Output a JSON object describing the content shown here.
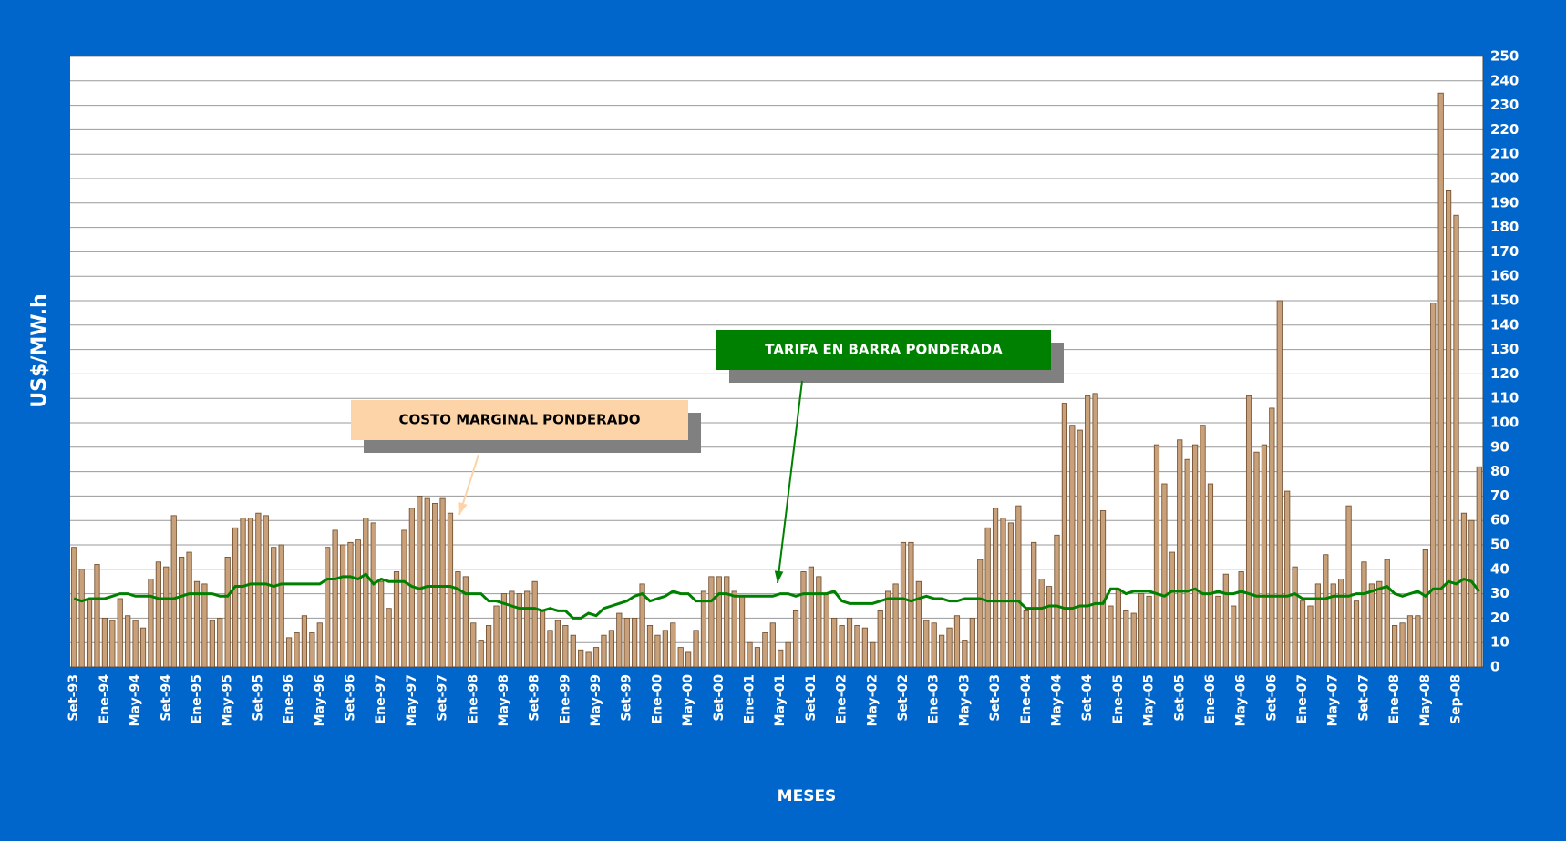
{
  "chart_data": {
    "type": "bar_line",
    "ylabel": "US$/MW.h",
    "xlabel": "MESES",
    "annotations": [
      "COSTO MARGINAL PONDERADO",
      "TARIFA EN BARRA PONDERADA"
    ],
    "ylim": [
      0,
      250
    ],
    "yticks": [
      0,
      10,
      20,
      30,
      40,
      50,
      60,
      70,
      80,
      90,
      100,
      110,
      120,
      130,
      140,
      150,
      160,
      170,
      180,
      190,
      200,
      210,
      220,
      230,
      240,
      250
    ],
    "grid": true,
    "categories": [
      "Set-93",
      null,
      null,
      null,
      "Ene-94",
      null,
      null,
      null,
      "May-94",
      null,
      null,
      null,
      "Set-94",
      null,
      null,
      null,
      "Ene-95",
      null,
      null,
      null,
      "May-95",
      null,
      null,
      null,
      "Set-95",
      null,
      null,
      null,
      "Ene-96",
      null,
      null,
      null,
      "May-96",
      null,
      null,
      null,
      "Set-96",
      null,
      null,
      null,
      "Ene-97",
      null,
      null,
      null,
      "May-97",
      null,
      null,
      null,
      "Set-97",
      null,
      null,
      null,
      "Ene-98",
      null,
      null,
      null,
      "May-98",
      null,
      null,
      null,
      "Set-98",
      null,
      null,
      null,
      "Ene-99",
      null,
      null,
      null,
      "May-99",
      null,
      null,
      null,
      "Set-99",
      null,
      null,
      null,
      "Ene-00",
      null,
      null,
      null,
      "May-00",
      null,
      null,
      null,
      "Set-00",
      null,
      null,
      null,
      "Ene-01",
      null,
      null,
      null,
      "May-01",
      null,
      null,
      null,
      "Set-01",
      null,
      null,
      null,
      "Ene-02",
      null,
      null,
      null,
      "May-02",
      null,
      null,
      null,
      "Set-02",
      null,
      null,
      null,
      "Ene-03",
      null,
      null,
      null,
      "May-03",
      null,
      null,
      null,
      "Set-03",
      null,
      null,
      null,
      "Ene-04",
      null,
      null,
      null,
      "May-04",
      null,
      null,
      null,
      "Set-04",
      null,
      null,
      null,
      "Ene-05",
      null,
      null,
      null,
      "May-05",
      null,
      null,
      null,
      "Set-05",
      null,
      null,
      null,
      "Ene-06",
      null,
      null,
      null,
      "May-06",
      null,
      null,
      null,
      "Set-06",
      null,
      null,
      null,
      "Ene-07",
      null,
      null,
      null,
      "May-07",
      null,
      null,
      null,
      "Set-07",
      null,
      null,
      null,
      "Ene-08",
      null,
      null,
      null,
      "May-08",
      null,
      null,
      null,
      "Sep-08",
      null,
      null,
      null
    ],
    "series": [
      {
        "name": "COSTO MARGINAL PONDERADO",
        "type": "bar",
        "color": "#c8a07a",
        "values": [
          49,
          40,
          28,
          42,
          20,
          19,
          28,
          21,
          19,
          16,
          36,
          43,
          41,
          62,
          45,
          47,
          35,
          34,
          19,
          20,
          45,
          57,
          61,
          61,
          63,
          62,
          49,
          50,
          12,
          14,
          21,
          14,
          18,
          49,
          56,
          50,
          51,
          52,
          61,
          59,
          35,
          24,
          39,
          56,
          65,
          70,
          69,
          67,
          69,
          63,
          39,
          37,
          18,
          11,
          17,
          25,
          30,
          31,
          30,
          31,
          35,
          23,
          15,
          19,
          17,
          13,
          7,
          6,
          8,
          13,
          15,
          22,
          20,
          20,
          34,
          17,
          13,
          15,
          18,
          8,
          6,
          15,
          31,
          37,
          37,
          37,
          31,
          29,
          10,
          8,
          14,
          18,
          7,
          10,
          23,
          39,
          41,
          37,
          30,
          20,
          17,
          20,
          17,
          16,
          10,
          23,
          31,
          34,
          51,
          51,
          35,
          19,
          18,
          13,
          16,
          21,
          11,
          20,
          44,
          57,
          65,
          61,
          59,
          66,
          23,
          51,
          36,
          33,
          54,
          108,
          99,
          97,
          111,
          112,
          64,
          25,
          32,
          23,
          22,
          30,
          29,
          91,
          75,
          47,
          93,
          85,
          91,
          99,
          75,
          29,
          38,
          25,
          39,
          111,
          88,
          91,
          106,
          150,
          72,
          41,
          27,
          25,
          34,
          46,
          34,
          36,
          66,
          27,
          43,
          34,
          35,
          44,
          17,
          18,
          21,
          21,
          48,
          149,
          235,
          195,
          185,
          63,
          60,
          82
        ]
      },
      {
        "name": "TARIFA EN BARRA PONDERADA",
        "type": "line",
        "color": "#008000",
        "values": [
          28,
          27,
          28,
          28,
          28,
          29,
          30,
          30,
          29,
          29,
          29,
          28,
          28,
          28,
          29,
          30,
          30,
          30,
          30,
          29,
          29,
          33,
          33,
          34,
          34,
          34,
          33,
          34,
          34,
          34,
          34,
          34,
          34,
          36,
          36,
          37,
          37,
          36,
          38,
          34,
          36,
          35,
          35,
          35,
          33,
          32,
          33,
          33,
          33,
          33,
          32,
          30,
          30,
          30,
          27,
          27,
          26,
          25,
          24,
          24,
          24,
          23,
          24,
          23,
          23,
          20,
          20,
          22,
          21,
          24,
          25,
          26,
          27,
          29,
          30,
          27,
          28,
          29,
          31,
          30,
          30,
          27,
          27,
          27,
          30,
          30,
          29,
          29,
          29,
          29,
          29,
          29,
          30,
          30,
          29,
          30,
          30,
          30,
          30,
          31,
          27,
          26,
          26,
          26,
          26,
          27,
          28,
          28,
          28,
          27,
          28,
          29,
          28,
          28,
          27,
          27,
          28,
          28,
          28,
          27,
          27,
          27,
          27,
          27,
          24,
          24,
          24,
          25,
          25,
          24,
          24,
          25,
          25,
          26,
          26,
          32,
          32,
          30,
          31,
          31,
          31,
          30,
          29,
          31,
          31,
          31,
          32,
          30,
          30,
          31,
          30,
          30,
          31,
          30,
          29,
          29,
          29,
          29,
          29,
          30,
          28,
          28,
          28,
          28,
          29,
          29,
          29,
          30,
          30,
          31,
          32,
          33,
          30,
          29,
          30,
          31,
          29,
          32,
          32,
          35,
          34,
          36,
          35,
          31
        ]
      }
    ]
  }
}
